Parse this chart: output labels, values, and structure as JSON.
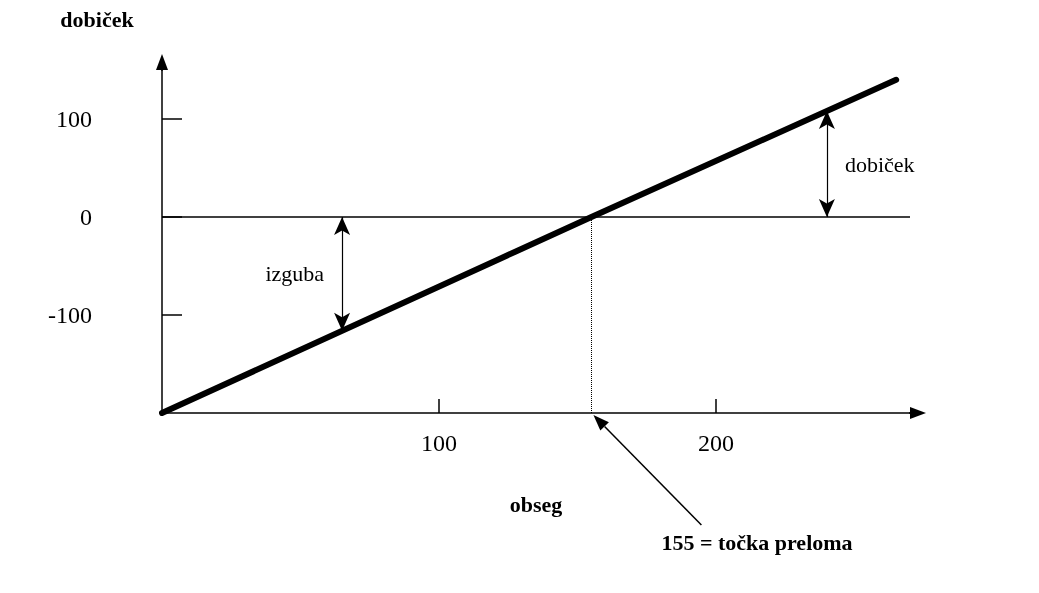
{
  "chart_data": {
    "type": "line",
    "ylabel": "dobiček",
    "xlabel": "obseg",
    "x": [
      0,
      155,
      265
    ],
    "values": [
      -200,
      0,
      140
    ],
    "color": "#000000",
    "xlim": [
      0,
      270
    ],
    "ylim": [
      -200,
      150
    ],
    "xticks": [
      100,
      200
    ],
    "yticks": [
      -100,
      0,
      100
    ],
    "grid": false,
    "marker": "none",
    "line_style": "solid",
    "ref_lines": [
      {
        "axis": "y",
        "value": 0,
        "line_style": "solid"
      },
      {
        "axis": "x",
        "value": 155,
        "line_style": "dotted"
      }
    ],
    "annotations": [
      {
        "text": "izguba",
        "x": 65,
        "y": -116
      },
      {
        "text": "dobiček",
        "x": 240,
        "y": 108
      },
      "155 = točka preloma"
    ]
  }
}
